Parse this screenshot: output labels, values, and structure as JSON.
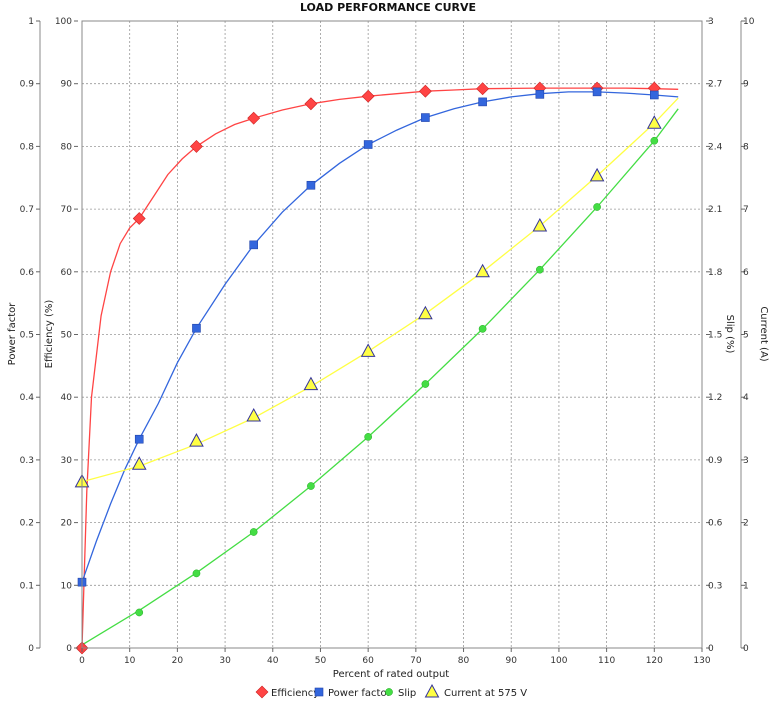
{
  "chart_data": {
    "type": "line",
    "title": "LOAD PERFORMANCE CURVE",
    "xlabel": "Percent of rated output",
    "xlim": [
      0,
      130
    ],
    "x_ticks": [
      0,
      10,
      20,
      30,
      40,
      50,
      60,
      70,
      80,
      90,
      100,
      110,
      120,
      130
    ],
    "grid": true,
    "legend_position": "bottom",
    "axes": {
      "power_factor": {
        "label": "Power factor",
        "side": "left-outer",
        "lim": [
          0,
          1
        ],
        "ticks": [
          "0",
          "0.1",
          "0.2",
          "0.3",
          "0.4",
          "0.5",
          "0.6",
          "0.7",
          "0.8",
          "0.9",
          "1"
        ]
      },
      "efficiency": {
        "label": "Efficiency (%)",
        "side": "left-inner",
        "lim": [
          0,
          100
        ],
        "ticks": [
          "0",
          "10",
          "20",
          "30",
          "40",
          "50",
          "60",
          "70",
          "80",
          "90",
          "100"
        ]
      },
      "slip": {
        "label": "Slip (%)",
        "side": "right-inner",
        "lim": [
          0,
          3
        ],
        "ticks": [
          "0",
          "0.3",
          "0.6",
          "0.9",
          "1.2",
          "1.5",
          "1.8",
          "2.1",
          "2.4",
          "2.7",
          "3"
        ]
      },
      "current": {
        "label": "Current (A)",
        "side": "right-outer",
        "lim": [
          0,
          10
        ],
        "ticks": [
          "0",
          "1",
          "2",
          "3",
          "4",
          "5",
          "6",
          "7",
          "8",
          "9",
          "10"
        ]
      }
    },
    "series": [
      {
        "name": "Efficiency",
        "axis": "efficiency",
        "color": "#ff4444",
        "marker": "diamond",
        "x": [
          0,
          12,
          24,
          36,
          48,
          60,
          72,
          84,
          96,
          108,
          120
        ],
        "values": [
          0,
          68.5,
          80,
          84.5,
          86.8,
          88,
          88.8,
          89.2,
          89.3,
          89.3,
          89.3
        ],
        "curve_x": [
          0,
          1,
          2,
          4,
          6,
          8,
          10,
          12,
          15,
          18,
          21,
          24,
          28,
          32,
          36,
          42,
          48,
          54,
          60,
          66,
          72,
          78,
          84,
          90,
          96,
          102,
          108,
          114,
          120,
          125
        ],
        "curve_y": [
          0,
          25,
          40,
          53,
          60,
          64.5,
          67,
          68.5,
          72,
          75.5,
          78,
          80,
          82,
          83.5,
          84.5,
          85.8,
          86.8,
          87.5,
          88,
          88.4,
          88.8,
          89,
          89.2,
          89.25,
          89.3,
          89.3,
          89.3,
          89.3,
          89.2,
          89.1
        ]
      },
      {
        "name": "Power factor",
        "axis": "power_factor",
        "color": "#3366dd",
        "marker": "square",
        "x": [
          0,
          12,
          24,
          36,
          48,
          60,
          72,
          84,
          96,
          108,
          120
        ],
        "values": [
          0.105,
          0.333,
          0.51,
          0.643,
          0.738,
          0.803,
          0.846,
          0.871,
          0.883,
          0.887,
          0.882
        ],
        "curve_x": [
          0,
          3,
          6,
          9,
          12,
          16,
          20,
          24,
          30,
          36,
          42,
          48,
          54,
          60,
          66,
          72,
          78,
          84,
          90,
          96,
          102,
          108,
          114,
          120,
          125
        ],
        "curve_y": [
          0.105,
          0.17,
          0.23,
          0.285,
          0.333,
          0.39,
          0.455,
          0.51,
          0.58,
          0.643,
          0.695,
          0.738,
          0.773,
          0.803,
          0.826,
          0.846,
          0.86,
          0.871,
          0.879,
          0.884,
          0.887,
          0.887,
          0.885,
          0.882,
          0.879
        ]
      },
      {
        "name": "Slip",
        "axis": "slip",
        "color": "#44dd44",
        "marker": "circle",
        "x": [
          12,
          24,
          36,
          48,
          60,
          72,
          84,
          96,
          108,
          120
        ],
        "values": [
          0.17,
          0.357,
          0.555,
          0.775,
          1.01,
          1.263,
          1.527,
          1.81,
          2.11,
          2.427
        ],
        "curve_x": [
          0,
          12,
          24,
          36,
          48,
          60,
          72,
          84,
          96,
          108,
          120,
          125
        ],
        "curve_y": [
          0.015,
          0.18,
          0.36,
          0.555,
          0.775,
          1.01,
          1.263,
          1.527,
          1.81,
          2.11,
          2.427,
          2.58
        ]
      },
      {
        "name": "Current at 575 V",
        "axis": "current",
        "color": "#ffff44",
        "marker": "triangle",
        "x": [
          0,
          12,
          24,
          36,
          48,
          60,
          72,
          84,
          96,
          108,
          120
        ],
        "values": [
          2.65,
          2.93,
          3.3,
          3.7,
          4.2,
          4.73,
          5.33,
          6.0,
          6.73,
          7.53,
          8.37
        ],
        "curve_x": [
          0,
          12,
          24,
          36,
          48,
          60,
          72,
          84,
          96,
          108,
          120,
          125
        ],
        "curve_y": [
          2.65,
          2.9,
          3.25,
          3.67,
          4.17,
          4.73,
          5.33,
          6.0,
          6.73,
          7.53,
          8.37,
          8.77
        ]
      }
    ]
  }
}
